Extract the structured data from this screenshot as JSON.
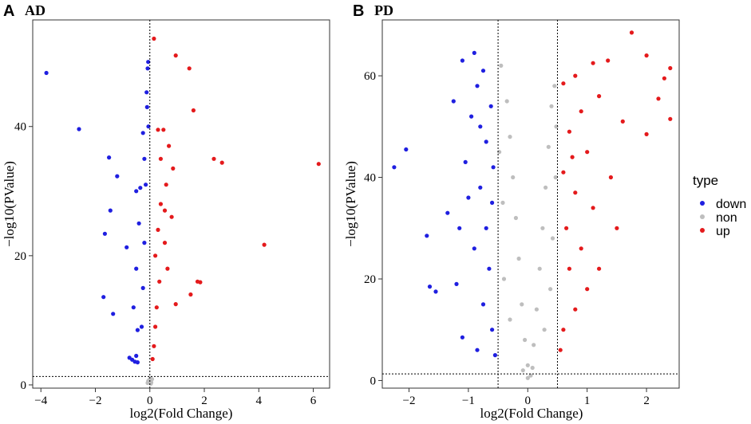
{
  "chart_data": [
    {
      "type": "scatter",
      "panel_letter": "A",
      "title": "AD",
      "xlabel": "log2(Fold Change)",
      "ylabel": "−log10(PValue)",
      "xlim": [
        -4.3,
        6.6
      ],
      "ylim": [
        -0.5,
        56.5
      ],
      "xticks": [
        -4,
        -2,
        0,
        2,
        4,
        6
      ],
      "yticks": [
        0,
        20,
        40
      ],
      "fc_cutoff": 0,
      "p_cutoff": 1.3,
      "grid": false,
      "series": [
        {
          "name": "down",
          "color": "#1f1fe0",
          "points": [
            [
              -3.8,
              48.3
            ],
            [
              -2.6,
              39.6
            ],
            [
              -1.5,
              35.2
            ],
            [
              -1.2,
              32.3
            ],
            [
              -1.45,
              27.0
            ],
            [
              -1.65,
              23.4
            ],
            [
              -0.85,
              21.3
            ],
            [
              -1.7,
              13.6
            ],
            [
              -1.35,
              11.0
            ],
            [
              -0.5,
              30.0
            ],
            [
              -0.35,
              30.5
            ],
            [
              -0.4,
              25.0
            ],
            [
              -0.5,
              18.0
            ],
            [
              -0.6,
              12.0
            ],
            [
              -0.45,
              8.5
            ],
            [
              -0.75,
              4.2
            ],
            [
              -0.65,
              3.9
            ],
            [
              -0.55,
              3.6
            ],
            [
              -0.5,
              4.5
            ],
            [
              -0.45,
              3.5
            ],
            [
              -0.3,
              9.0
            ],
            [
              -0.25,
              15.0
            ],
            [
              -0.2,
              22.0
            ],
            [
              -0.15,
              31.0
            ],
            [
              -0.25,
              39.0
            ],
            [
              -0.1,
              43.0
            ],
            [
              -0.12,
              45.3
            ],
            [
              -0.08,
              49.0
            ],
            [
              -0.06,
              50.0
            ],
            [
              -0.05,
              40.0
            ],
            [
              -0.2,
              35.0
            ]
          ]
        },
        {
          "name": "up",
          "color": "#e41a1c",
          "points": [
            [
              0.15,
              53.6
            ],
            [
              0.95,
              51.0
            ],
            [
              1.45,
              49.0
            ],
            [
              1.6,
              42.5
            ],
            [
              2.35,
              35.0
            ],
            [
              2.65,
              34.4
            ],
            [
              6.2,
              34.2
            ],
            [
              4.2,
              21.7
            ],
            [
              1.75,
              16.0
            ],
            [
              1.85,
              15.9
            ],
            [
              1.5,
              14.0
            ],
            [
              0.3,
              39.5
            ],
            [
              0.5,
              39.5
            ],
            [
              0.7,
              37.0
            ],
            [
              0.85,
              33.5
            ],
            [
              0.6,
              31.0
            ],
            [
              0.8,
              26.0
            ],
            [
              0.55,
              22.0
            ],
            [
              0.4,
              28.0
            ],
            [
              0.3,
              24.0
            ],
            [
              0.2,
              20.0
            ],
            [
              0.35,
              16.0
            ],
            [
              0.25,
              12.0
            ],
            [
              0.2,
              9.0
            ],
            [
              0.15,
              6.0
            ],
            [
              0.1,
              4.0
            ],
            [
              0.4,
              35.0
            ],
            [
              0.55,
              27.0
            ],
            [
              0.65,
              18.0
            ],
            [
              0.95,
              12.5
            ]
          ]
        },
        {
          "name": "non",
          "color": "#bebebe",
          "points": [
            [
              -0.06,
              0.6
            ],
            [
              0.05,
              0.4
            ],
            [
              -0.02,
              0.8
            ],
            [
              0.04,
              0.2
            ],
            [
              0.0,
              0.5
            ],
            [
              0.08,
              0.9
            ],
            [
              -0.08,
              0.3
            ],
            [
              0.02,
              1.0
            ]
          ]
        }
      ]
    },
    {
      "type": "scatter",
      "panel_letter": "B",
      "title": "PD",
      "xlabel": "log2(Fold Change)",
      "ylabel": "−log10(PValue)",
      "xlim": [
        -2.45,
        2.55
      ],
      "ylim": [
        -1.5,
        71.0
      ],
      "xticks": [
        -2,
        -1,
        0,
        1,
        2
      ],
      "yticks": [
        0,
        20,
        40,
        60
      ],
      "fc_cutoff": 0.5,
      "p_cutoff": 1.3,
      "grid": false,
      "series": [
        {
          "name": "down",
          "color": "#1f1fe0",
          "points": [
            [
              -2.05,
              45.5
            ],
            [
              -2.25,
              42.0
            ],
            [
              -1.7,
              28.5
            ],
            [
              -1.65,
              18.5
            ],
            [
              -1.55,
              17.5
            ],
            [
              -1.35,
              33.0
            ],
            [
              -1.2,
              19.0
            ],
            [
              -1.1,
              8.5
            ],
            [
              -0.85,
              6.0
            ],
            [
              -0.9,
              64.5
            ],
            [
              -1.1,
              63.0
            ],
            [
              -0.75,
              61.0
            ],
            [
              -1.25,
              55.0
            ],
            [
              -0.95,
              52.0
            ],
            [
              -0.7,
              47.0
            ],
            [
              -1.05,
              43.0
            ],
            [
              -0.8,
              38.0
            ],
            [
              -0.6,
              35.0
            ],
            [
              -1.15,
              30.0
            ],
            [
              -0.9,
              26.0
            ],
            [
              -0.65,
              22.0
            ],
            [
              -0.75,
              15.0
            ],
            [
              -0.6,
              10.0
            ],
            [
              -0.55,
              5.0
            ],
            [
              -0.85,
              58.0
            ],
            [
              -0.62,
              54.0
            ],
            [
              -0.7,
              30.0
            ],
            [
              -1.0,
              36.0
            ],
            [
              -0.58,
              42.0
            ],
            [
              -0.8,
              50.0
            ]
          ]
        },
        {
          "name": "up",
          "color": "#e41a1c",
          "points": [
            [
              1.75,
              68.5
            ],
            [
              2.0,
              64.0
            ],
            [
              2.4,
              61.5
            ],
            [
              2.3,
              59.5
            ],
            [
              2.2,
              55.5
            ],
            [
              2.4,
              51.5
            ],
            [
              2.0,
              48.5
            ],
            [
              1.6,
              51.0
            ],
            [
              1.35,
              63.0
            ],
            [
              1.1,
              62.5
            ],
            [
              0.8,
              60.0
            ],
            [
              0.6,
              58.5
            ],
            [
              1.2,
              56.0
            ],
            [
              0.9,
              53.0
            ],
            [
              0.7,
              49.0
            ],
            [
              1.0,
              45.0
            ],
            [
              0.6,
              41.0
            ],
            [
              0.8,
              37.0
            ],
            [
              1.1,
              34.0
            ],
            [
              0.65,
              30.0
            ],
            [
              0.9,
              26.0
            ],
            [
              0.7,
              22.0
            ],
            [
              1.0,
              18.0
            ],
            [
              0.8,
              14.0
            ],
            [
              0.6,
              10.0
            ],
            [
              0.55,
              6.0
            ],
            [
              1.4,
              40.0
            ],
            [
              1.5,
              30.0
            ],
            [
              1.2,
              22.0
            ],
            [
              0.75,
              44.0
            ]
          ]
        },
        {
          "name": "non",
          "color": "#bebebe",
          "points": [
            [
              -0.45,
              62.0
            ],
            [
              -0.35,
              55.0
            ],
            [
              -0.3,
              48.0
            ],
            [
              -0.25,
              40.0
            ],
            [
              -0.2,
              32.0
            ],
            [
              -0.15,
              24.0
            ],
            [
              -0.1,
              15.0
            ],
            [
              -0.05,
              8.0
            ],
            [
              0.0,
              3.0
            ],
            [
              0.05,
              1.0
            ],
            [
              0.1,
              7.0
            ],
            [
              0.15,
              14.0
            ],
            [
              0.2,
              22.0
            ],
            [
              0.25,
              30.0
            ],
            [
              0.3,
              38.0
            ],
            [
              0.35,
              46.0
            ],
            [
              0.4,
              54.0
            ],
            [
              0.45,
              58.0
            ],
            [
              -0.42,
              35.0
            ],
            [
              -0.4,
              20.0
            ],
            [
              0.42,
              28.0
            ],
            [
              0.38,
              18.0
            ],
            [
              -0.3,
              12.0
            ],
            [
              0.28,
              10.0
            ],
            [
              0.0,
              0.5
            ],
            [
              -0.08,
              2.0
            ],
            [
              0.08,
              2.5
            ],
            [
              -0.48,
              45.0
            ],
            [
              0.47,
              40.0
            ],
            [
              0.48,
              50.0
            ]
          ]
        }
      ]
    }
  ],
  "legend": {
    "title": "type",
    "items": [
      {
        "label": "down",
        "color": "#1f1fe0"
      },
      {
        "label": "non",
        "color": "#bebebe"
      },
      {
        "label": "up",
        "color": "#e41a1c"
      }
    ]
  }
}
